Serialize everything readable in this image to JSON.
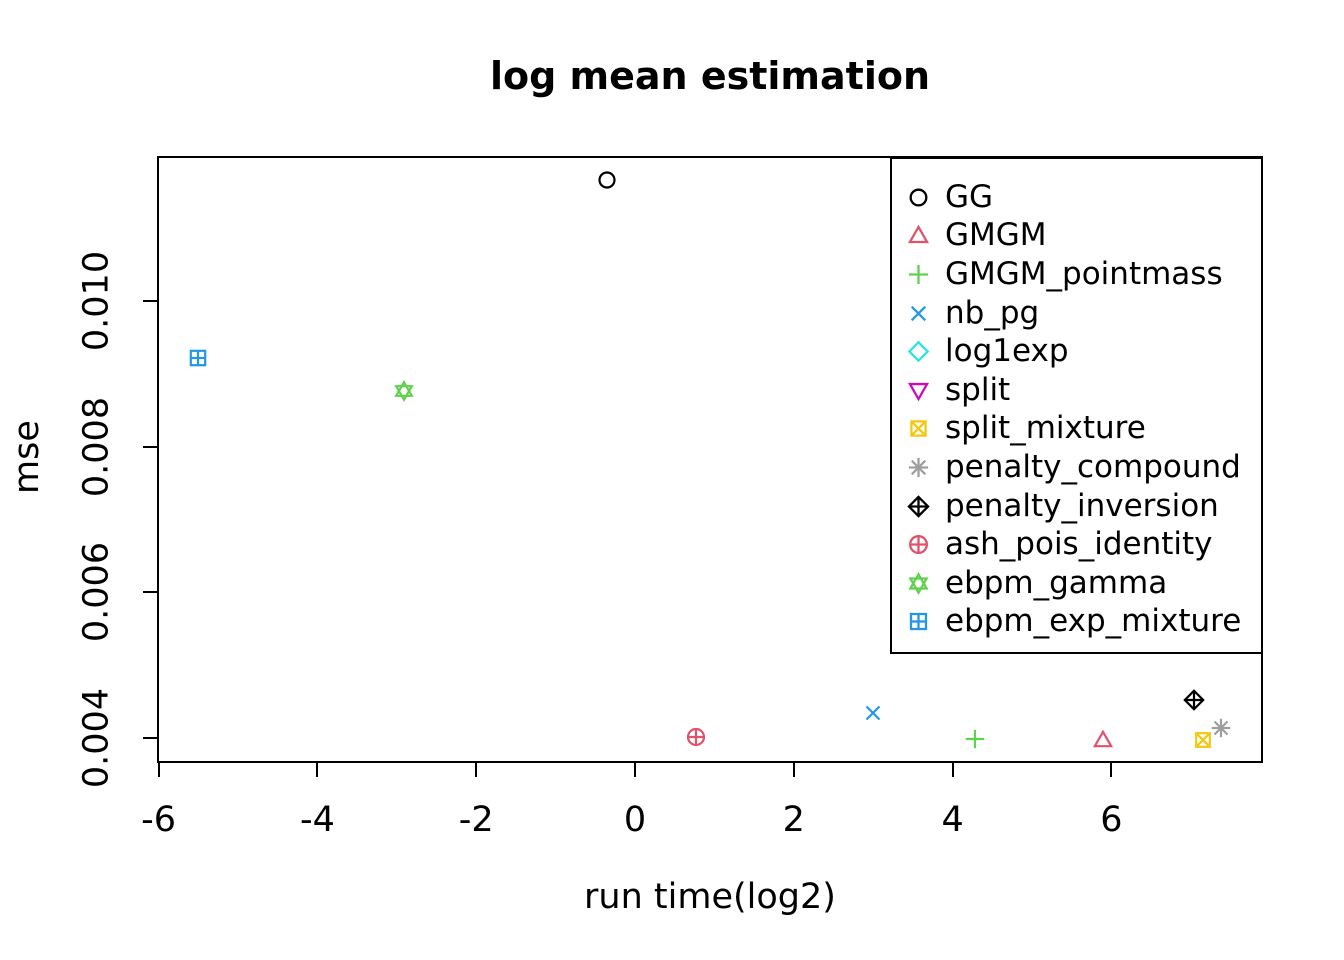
{
  "title": "log mean estimation",
  "chart_data": {
    "type": "scatter",
    "title": "log mean estimation",
    "xlabel": "run time(log2)",
    "ylabel": "mse",
    "x_ticks": [
      "-6",
      "-4",
      "-2",
      "0",
      "2",
      "4",
      "6"
    ],
    "x_tick_values": [
      -6,
      -4,
      -2,
      0,
      2,
      4,
      6
    ],
    "y_ticks": [
      "0.004",
      "0.006",
      "0.008",
      "0.010"
    ],
    "y_tick_values": [
      0.004,
      0.006,
      0.008,
      0.01
    ],
    "xlim": [
      -6.0,
      7.9
    ],
    "ylim": [
      0.00366,
      0.012
    ],
    "grid": false,
    "legend_position": "top-right",
    "series": [
      {
        "name": "GG",
        "marker": "circle",
        "pch": 1,
        "color": "#000000",
        "points": [
          {
            "x": -0.35,
            "y": 0.01166
          }
        ]
      },
      {
        "name": "GMGM",
        "marker": "triangle-up",
        "pch": 2,
        "color": "#DF536B",
        "points": [
          {
            "x": 5.9,
            "y": 0.00397
          }
        ]
      },
      {
        "name": "GMGM_pointmass",
        "marker": "plus",
        "pch": 3,
        "color": "#61D04F",
        "points": [
          {
            "x": 4.28,
            "y": 0.00399
          }
        ]
      },
      {
        "name": "nb_pg",
        "marker": "x",
        "pch": 4,
        "color": "#2297E6",
        "points": [
          {
            "x": 3.0,
            "y": 0.00434
          }
        ]
      },
      {
        "name": "log1exp",
        "marker": "diamond",
        "pch": 5,
        "color": "#28E2E5",
        "points": []
      },
      {
        "name": "split",
        "marker": "triangle-down",
        "pch": 6,
        "color": "#CD0BBC",
        "points": []
      },
      {
        "name": "split_mixture",
        "marker": "square-x",
        "pch": 7,
        "color": "#F5C710",
        "points": [
          {
            "x": 7.15,
            "y": 0.00397
          }
        ]
      },
      {
        "name": "penalty_compound",
        "marker": "asterisk",
        "pch": 8,
        "color": "#9E9E9E",
        "points": [
          {
            "x": 7.38,
            "y": 0.00414
          }
        ]
      },
      {
        "name": "penalty_inversion",
        "marker": "diamond-plus",
        "pch": 9,
        "color": "#000000",
        "points": [
          {
            "x": 7.04,
            "y": 0.00452
          }
        ]
      },
      {
        "name": "ash_pois_identity",
        "marker": "circle-plus",
        "pch": 10,
        "color": "#DF536B",
        "points": [
          {
            "x": 0.77,
            "y": 0.00401
          }
        ]
      },
      {
        "name": "ebpm_gamma",
        "marker": "hexagram",
        "pch": 11,
        "color": "#61D04F",
        "points": [
          {
            "x": -2.91,
            "y": 0.00876
          }
        ]
      },
      {
        "name": "ebpm_exp_mixture",
        "marker": "square-plus",
        "pch": 12,
        "color": "#2297E6",
        "points": [
          {
            "x": -5.5,
            "y": 0.00922
          }
        ]
      }
    ]
  }
}
